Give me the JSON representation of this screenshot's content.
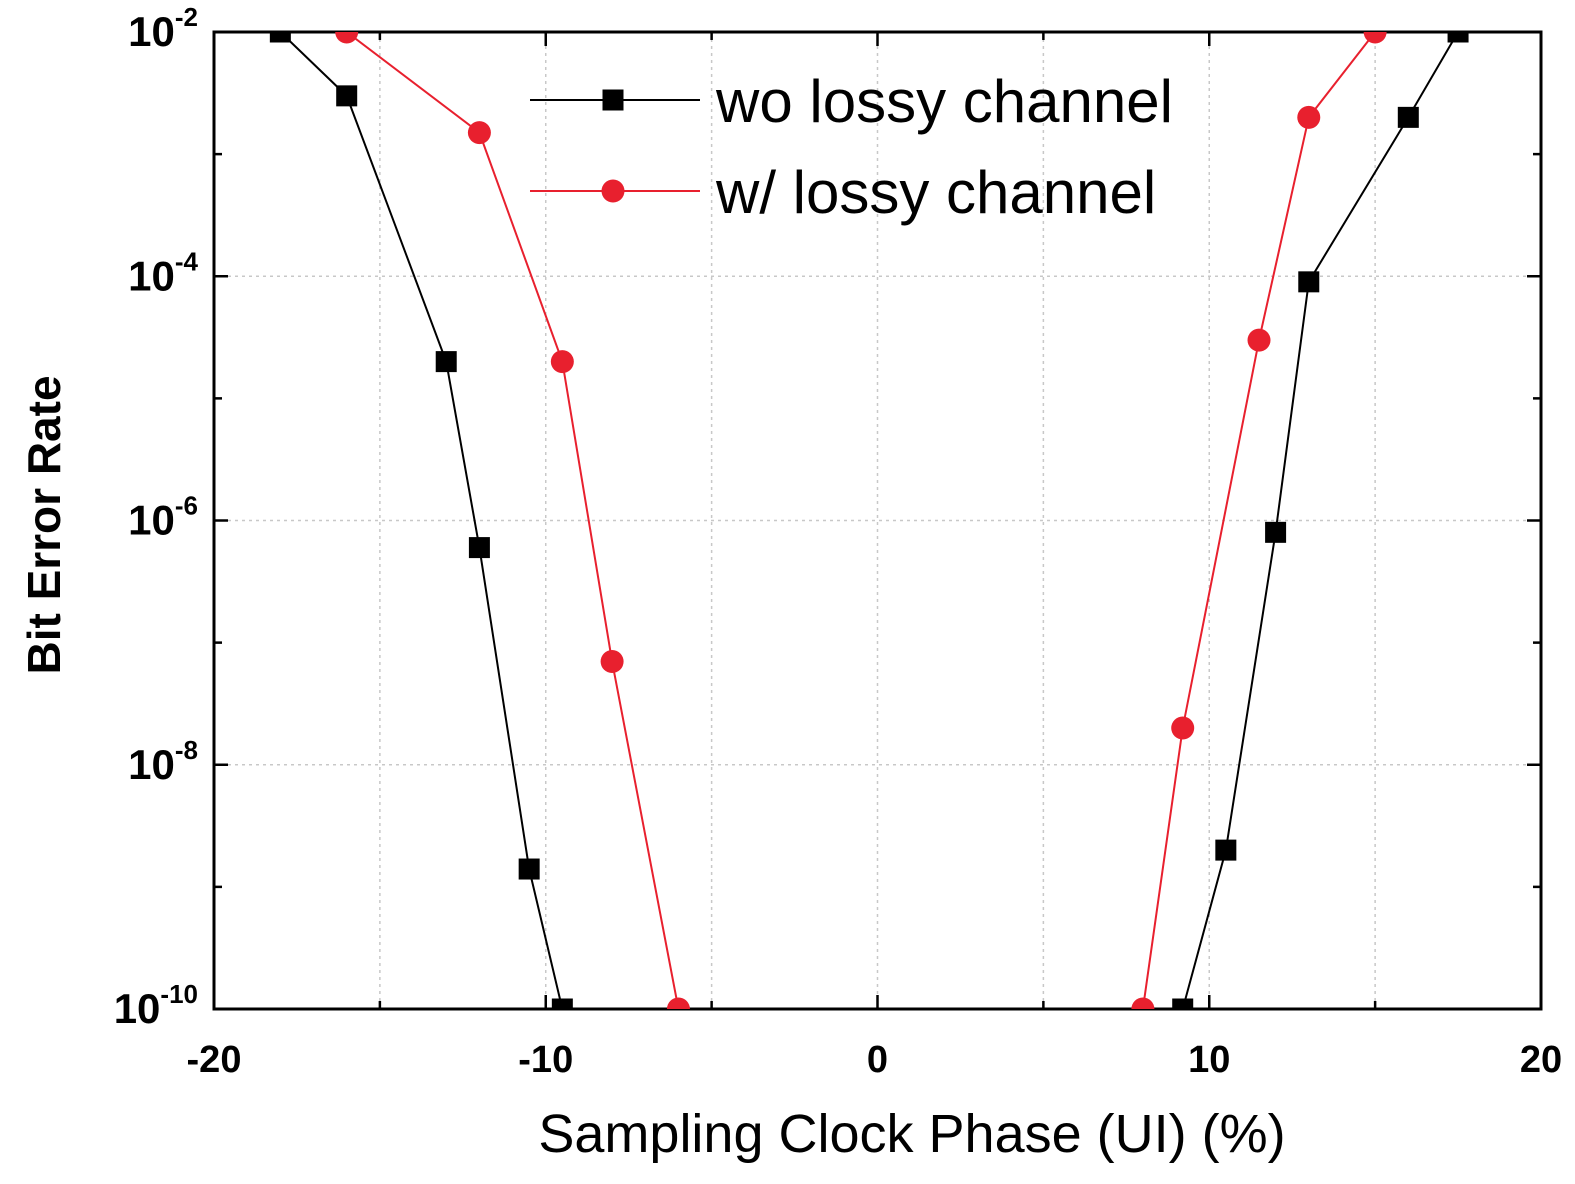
{
  "chart_data": {
    "type": "line",
    "title": "",
    "xlabel": "Sampling Clock Phase (UI) (%)",
    "ylabel": "Bit Error Rate",
    "xlim": [
      -20,
      20
    ],
    "ylim": [
      1e-10,
      0.01
    ],
    "yscale": "log",
    "grid": true,
    "legend_position": "top-center",
    "x_ticks": [
      {
        "value": -20,
        "label": "-20"
      },
      {
        "value": -10,
        "label": "-10"
      },
      {
        "value": 0,
        "label": "0"
      },
      {
        "value": 10,
        "label": "10"
      },
      {
        "value": 20,
        "label": "20"
      }
    ],
    "y_ticks": [
      {
        "value": 0.01,
        "base": "10",
        "exp": "-2"
      },
      {
        "value": 0.0001,
        "base": "10",
        "exp": "-4"
      },
      {
        "value": 1e-06,
        "base": "10",
        "exp": "-6"
      },
      {
        "value": 1e-08,
        "base": "10",
        "exp": "-8"
      },
      {
        "value": 1e-10,
        "base": "10",
        "exp": "-10"
      }
    ],
    "series": [
      {
        "name": "wo lossy channel",
        "color": "#000000",
        "marker": "square",
        "points": [
          [
            -18,
            0.01
          ],
          [
            -16,
            0.003
          ],
          [
            -13,
            2e-05
          ],
          [
            -12,
            6e-07
          ],
          [
            -10.5,
            1.4e-09
          ],
          [
            -9.5,
            1e-10
          ],
          [
            9.2,
            1e-10
          ],
          [
            10.5,
            2e-09
          ],
          [
            12,
            8e-07
          ],
          [
            13,
            9e-05
          ],
          [
            16,
            0.002
          ],
          [
            17.5,
            0.01
          ]
        ]
      },
      {
        "name": "w/ lossy channel",
        "color": "#e8202e",
        "marker": "circle",
        "points": [
          [
            -16,
            0.01
          ],
          [
            -12,
            0.0015
          ],
          [
            -9.5,
            2e-05
          ],
          [
            -8,
            7e-08
          ],
          [
            -6,
            1e-10
          ],
          [
            8,
            1e-10
          ],
          [
            9.2,
            2e-08
          ],
          [
            11.5,
            3e-05
          ],
          [
            13,
            0.002
          ],
          [
            15,
            0.01
          ]
        ]
      }
    ]
  }
}
